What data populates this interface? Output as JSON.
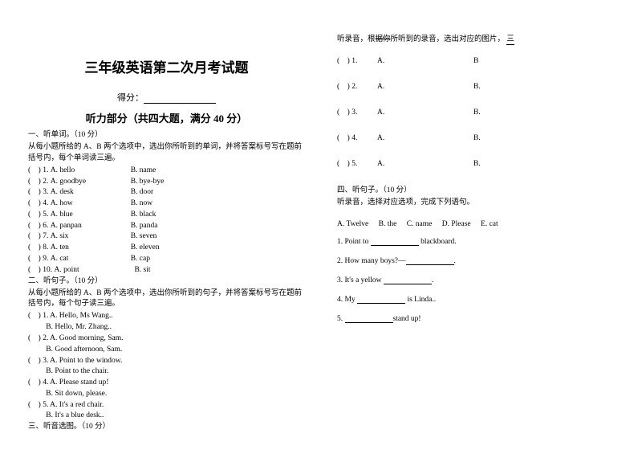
{
  "title": "三年级英语第二次月考试题",
  "scoreLabel": "得分：",
  "sectionTitle": "听力部分（共四大题，满分 40 分）",
  "sec1": {
    "heading": "一、听单词。（10 分）",
    "instr": "从每小题所给的 A、B 两个选项中，选出你所听到的单词，并将答案标号写在题前括号内，每个单词读三遍。",
    "items": [
      {
        "n": "1",
        "a": "A. hello",
        "b": "B. name"
      },
      {
        "n": "2",
        "a": "A. goodbye",
        "b": "B. bye-bye"
      },
      {
        "n": "3",
        "a": "A. desk",
        "b": "B. door"
      },
      {
        "n": "4",
        "a": "A. how",
        "b": "B. now"
      },
      {
        "n": "5",
        "a": "A. blue",
        "b": "B. black"
      },
      {
        "n": "6",
        "a": "A. panpan",
        "b": "B. panda"
      },
      {
        "n": "7",
        "a": "A. six",
        "b": "B. seven"
      },
      {
        "n": "8",
        "a": "A. ten",
        "b": "B. eleven"
      },
      {
        "n": "9",
        "a": "A. cat",
        "b": "B. cap"
      },
      {
        "n": "10",
        "a": "A. point",
        "b": "B. sit"
      }
    ]
  },
  "sec2": {
    "heading": "二、听句子。（10 分）",
    "instr": "从每小题所给的 A、B 两个选项中，选出你所听到的句子，并将答案标号写在题前括号内，每个句子读三遍。",
    "items": [
      {
        "n": "1",
        "a": "A. Hello, Ms Wang..",
        "b": "B. Hello, Mr. Zhang.."
      },
      {
        "n": "2",
        "a": "A. Good morning, Sam.",
        "b": "B. Good afternoon, Sam."
      },
      {
        "n": "3",
        "a": "A. Point to the window.",
        "b": "B. Point to the chair."
      },
      {
        "n": "4",
        "a": "A. Please stand up!",
        "b": "B. Sit down, please."
      },
      {
        "n": "5",
        "a": "A. It's a red chair.",
        "b": "B. It's a blue desk.."
      }
    ]
  },
  "sec3": {
    "heading": "三、听音选图。（10 分）",
    "topline_a": "听录音，根",
    "topline_strike": "据你",
    "topline_b": "所听到的录音，选出对应的图片，",
    "bottomline": "三",
    "rows": [
      {
        "n": "1",
        "a": "A.",
        "b": "B"
      },
      {
        "n": "2",
        "a": "A.",
        "b": "B."
      },
      {
        "n": "3",
        "a": "A.",
        "b": "B."
      },
      {
        "n": "4",
        "a": "A.",
        "b": "B."
      },
      {
        "n": "5",
        "a": "A.",
        "b": "B."
      }
    ]
  },
  "sec4": {
    "heading": "四、听句子。（10 分）",
    "instr": "听录音，选择对应选项，完成下列语句。",
    "options": {
      "a": "A. Twelve",
      "b": "B. the",
      "c": "C. name",
      "d": "D. Please",
      "e": "E. cat"
    },
    "sentences": [
      {
        "pre": "1. Point to ",
        "post": " blackboard."
      },
      {
        "pre": "2. How many boys?—",
        "post": "."
      },
      {
        "pre": "3. It's a yellow ",
        "post": "."
      },
      {
        "pre": "4. My ",
        "post": " is Linda.."
      },
      {
        "pre": "5. ",
        "post": "stand up!"
      }
    ]
  }
}
